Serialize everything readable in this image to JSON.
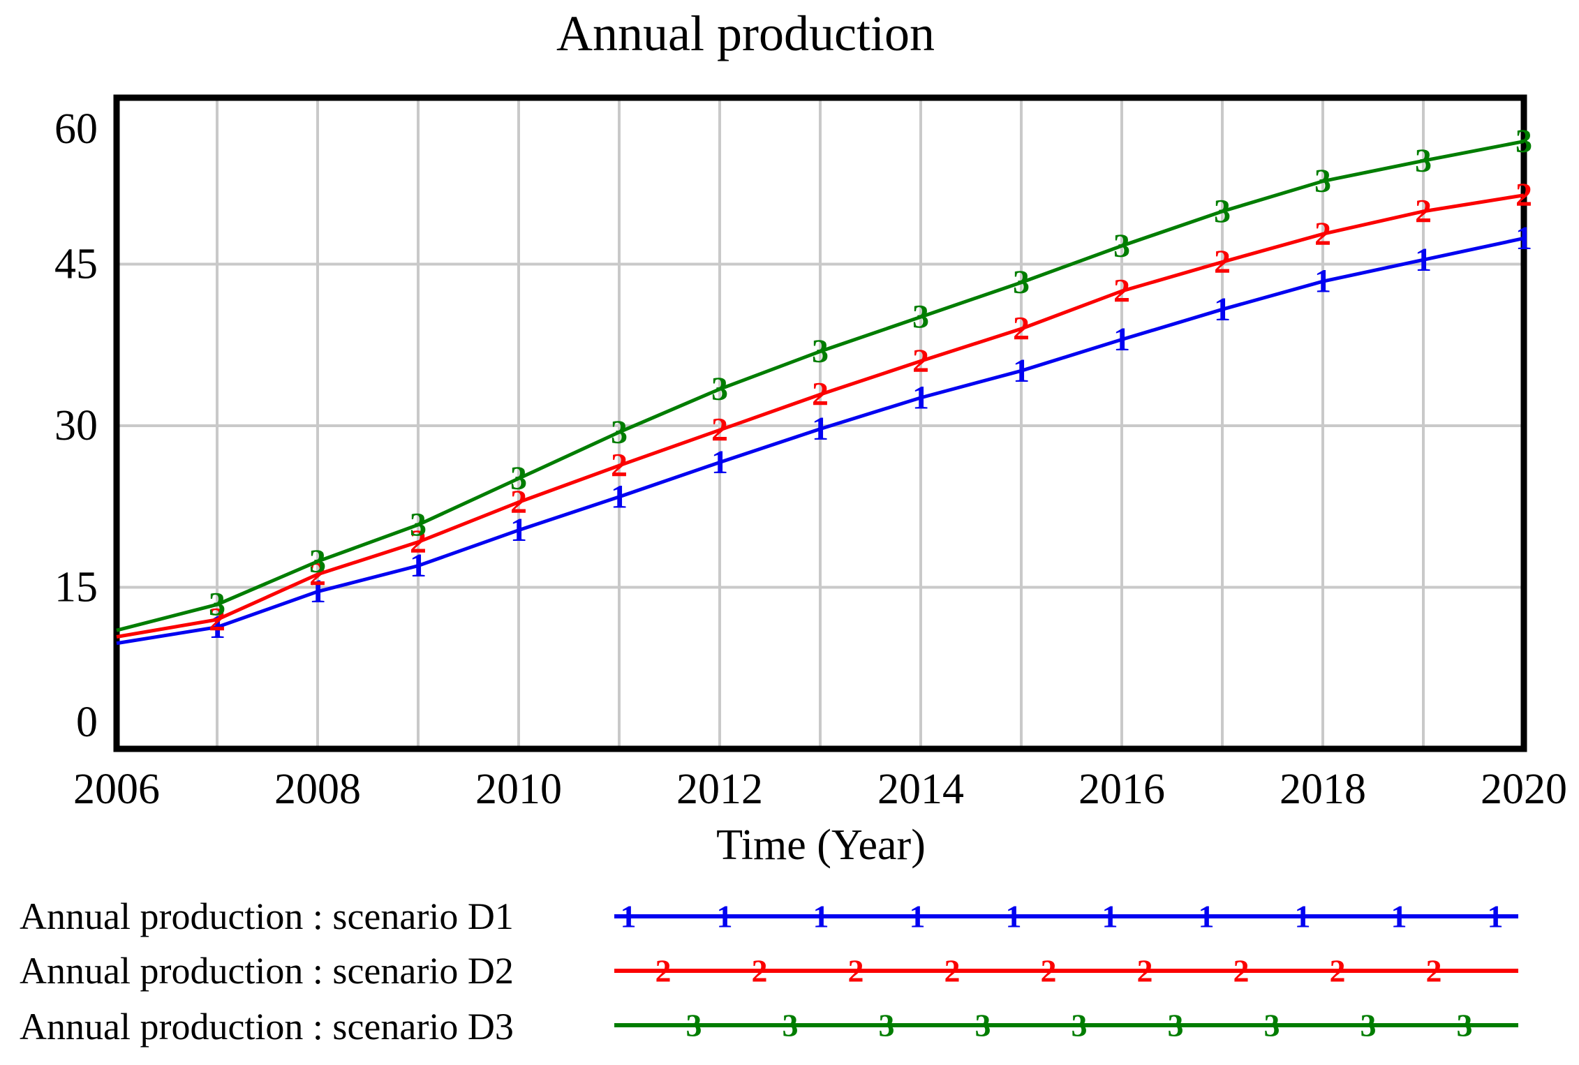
{
  "title": "Annual production",
  "x_axis_title": "Time (Year)",
  "colors": {
    "series_d1": "#0202f0",
    "series_d2": "#fb0000",
    "series_d3": "#007d00",
    "gridline": "#c9c9c9",
    "frame": "#000000",
    "text": "#000000"
  },
  "legend": {
    "row1_label": "Annual production : scenario D1",
    "row2_label": "Annual production : scenario D2",
    "row3_label": "Annual production : scenario D3"
  },
  "chart_data": {
    "type": "line",
    "title": "Annual production",
    "xlabel": "Time (Year)",
    "ylabel": "",
    "x": [
      2006,
      2007,
      2008,
      2009,
      2010,
      2011,
      2012,
      2013,
      2014,
      2015,
      2016,
      2017,
      2018,
      2019,
      2020
    ],
    "xlim": [
      2006,
      2020
    ],
    "ylim": [
      0,
      60
    ],
    "y_ticks": [
      0,
      15,
      30,
      45,
      60
    ],
    "x_tick_labels": [
      2006,
      2008,
      2010,
      2012,
      2014,
      2016,
      2018,
      2020
    ],
    "grid": true,
    "legend_position": "bottom-left",
    "series": [
      {
        "name": "Annual production : scenario D1",
        "marker": "1",
        "color": "#0202f0",
        "values": [
          9.8,
          11.3,
          14.6,
          17.0,
          20.3,
          23.4,
          26.6,
          29.7,
          32.6,
          35.1,
          38.0,
          40.8,
          43.4,
          45.4,
          47.4
        ]
      },
      {
        "name": "Annual production : scenario D2",
        "marker": "2",
        "color": "#fb0000",
        "values": [
          10.4,
          12.0,
          16.2,
          19.2,
          22.9,
          26.3,
          29.6,
          32.9,
          36.0,
          39.0,
          42.5,
          45.2,
          47.8,
          49.9,
          51.4
        ]
      },
      {
        "name": "Annual production : scenario D3",
        "marker": "3",
        "color": "#007d00",
        "values": [
          11.0,
          13.4,
          17.4,
          20.8,
          25.1,
          29.4,
          33.4,
          36.9,
          40.1,
          43.3,
          46.7,
          49.9,
          52.7,
          54.6,
          56.4
        ]
      }
    ]
  }
}
